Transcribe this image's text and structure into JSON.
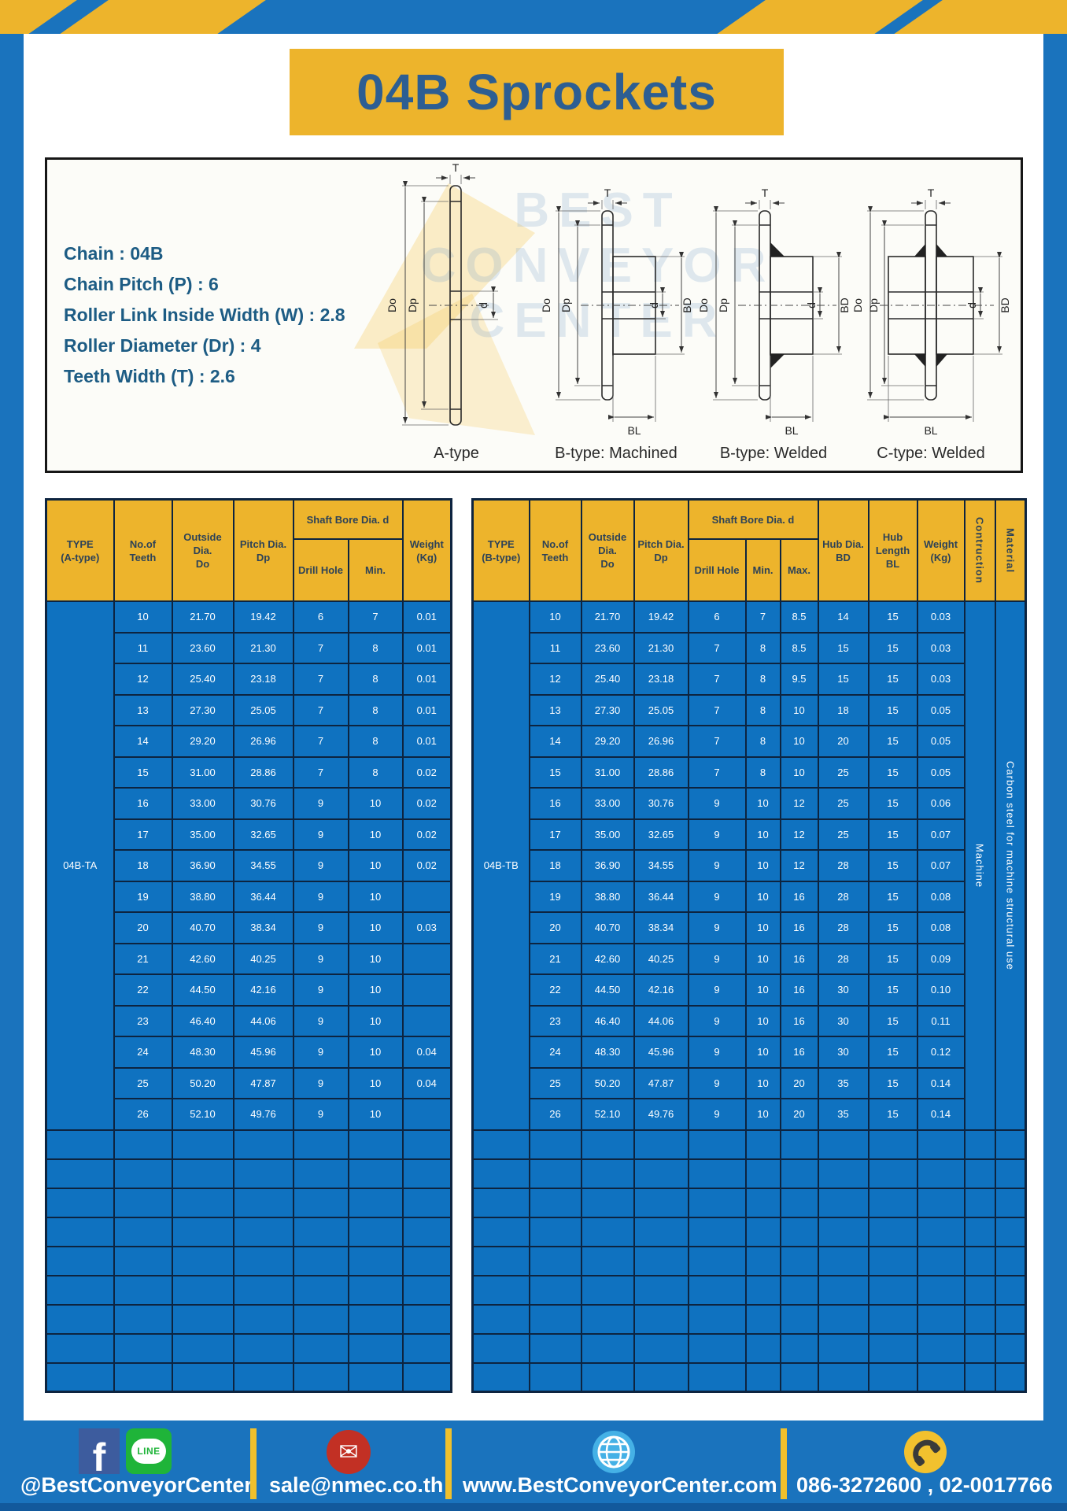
{
  "page": {
    "title": "04B Sprockets",
    "specs": [
      "Chain : 04B",
      "Chain Pitch (P) : 6",
      "Roller Link Inside Width (W) : 2.8",
      "Roller Diameter (Dr) : 4",
      "Teeth Width (T) : 2.6"
    ]
  },
  "watermark": {
    "line1": "BEST",
    "line2": "CONVEYOR",
    "line3": "CENTER"
  },
  "diagram": {
    "captions": [
      "A-type",
      "B-type: Machined",
      "B-type: Welded",
      "C-type: Welded"
    ],
    "dims": {
      "t": "T",
      "do": "Do",
      "dp": "Dp",
      "d": "d",
      "bd": "BD",
      "bl": "BL"
    }
  },
  "left_table": {
    "headers": {
      "type": "TYPE\n(A-type)",
      "teeth": "No.of\nTeeth",
      "outside": "Outside\nDia.\nDo",
      "pitch": "Pitch Dia.\nDp",
      "shaft_bore": "Shaft Bore Dia. d",
      "drill": "Drill Hole",
      "min": "Min.",
      "weight": "Weight\n(Kg)"
    },
    "type_value": "04B-TA",
    "rows": [
      [
        "10",
        "21.70",
        "19.42",
        "6",
        "7",
        "0.01"
      ],
      [
        "11",
        "23.60",
        "21.30",
        "7",
        "8",
        "0.01"
      ],
      [
        "12",
        "25.40",
        "23.18",
        "7",
        "8",
        "0.01"
      ],
      [
        "13",
        "27.30",
        "25.05",
        "7",
        "8",
        "0.01"
      ],
      [
        "14",
        "29.20",
        "26.96",
        "7",
        "8",
        "0.01"
      ],
      [
        "15",
        "31.00",
        "28.86",
        "7",
        "8",
        "0.02"
      ],
      [
        "16",
        "33.00",
        "30.76",
        "9",
        "10",
        "0.02"
      ],
      [
        "17",
        "35.00",
        "32.65",
        "9",
        "10",
        "0.02"
      ],
      [
        "18",
        "36.90",
        "34.55",
        "9",
        "10",
        "0.02"
      ],
      [
        "19",
        "38.80",
        "36.44",
        "9",
        "10",
        ""
      ],
      [
        "20",
        "40.70",
        "38.34",
        "9",
        "10",
        "0.03"
      ],
      [
        "21",
        "42.60",
        "40.25",
        "9",
        "10",
        ""
      ],
      [
        "22",
        "44.50",
        "42.16",
        "9",
        "10",
        ""
      ],
      [
        "23",
        "46.40",
        "44.06",
        "9",
        "10",
        ""
      ],
      [
        "24",
        "48.30",
        "45.96",
        "9",
        "10",
        "0.04"
      ],
      [
        "25",
        "50.20",
        "47.87",
        "9",
        "10",
        "0.04"
      ],
      [
        "26",
        "52.10",
        "49.76",
        "9",
        "10",
        ""
      ]
    ],
    "empty_rows": 9
  },
  "right_table": {
    "headers": {
      "type": "TYPE\n(B-type)",
      "teeth": "No.of\nTeeth",
      "outside": "Outside\nDia.\nDo",
      "pitch": "Pitch Dia.\nDp",
      "shaft_bore": "Shaft Bore Dia. d",
      "drill": "Drill Hole",
      "min": "Min.",
      "max": "Max.",
      "hub_dia": "Hub Dia.\nBD",
      "hub_len": "Hub\nLength\nBL",
      "weight": "Weight\n(Kg)",
      "construction": "Contruction",
      "material": "Material"
    },
    "type_value": "04B-TB",
    "construction_value": "Machine",
    "material_value": "Carbon steel for machine structural use",
    "rows": [
      [
        "10",
        "21.70",
        "19.42",
        "6",
        "7",
        "8.5",
        "14",
        "15",
        "0.03"
      ],
      [
        "11",
        "23.60",
        "21.30",
        "7",
        "8",
        "8.5",
        "15",
        "15",
        "0.03"
      ],
      [
        "12",
        "25.40",
        "23.18",
        "7",
        "8",
        "9.5",
        "15",
        "15",
        "0.03"
      ],
      [
        "13",
        "27.30",
        "25.05",
        "7",
        "8",
        "10",
        "18",
        "15",
        "0.05"
      ],
      [
        "14",
        "29.20",
        "26.96",
        "7",
        "8",
        "10",
        "20",
        "15",
        "0.05"
      ],
      [
        "15",
        "31.00",
        "28.86",
        "7",
        "8",
        "10",
        "25",
        "15",
        "0.05"
      ],
      [
        "16",
        "33.00",
        "30.76",
        "9",
        "10",
        "12",
        "25",
        "15",
        "0.06"
      ],
      [
        "17",
        "35.00",
        "32.65",
        "9",
        "10",
        "12",
        "25",
        "15",
        "0.07"
      ],
      [
        "18",
        "36.90",
        "34.55",
        "9",
        "10",
        "12",
        "28",
        "15",
        "0.07"
      ],
      [
        "19",
        "38.80",
        "36.44",
        "9",
        "10",
        "16",
        "28",
        "15",
        "0.08"
      ],
      [
        "20",
        "40.70",
        "38.34",
        "9",
        "10",
        "16",
        "28",
        "15",
        "0.08"
      ],
      [
        "21",
        "42.60",
        "40.25",
        "9",
        "10",
        "16",
        "28",
        "15",
        "0.09"
      ],
      [
        "22",
        "44.50",
        "42.16",
        "9",
        "10",
        "16",
        "30",
        "15",
        "0.10"
      ],
      [
        "23",
        "46.40",
        "44.06",
        "9",
        "10",
        "16",
        "30",
        "15",
        "0.11"
      ],
      [
        "24",
        "48.30",
        "45.96",
        "9",
        "10",
        "16",
        "30",
        "15",
        "0.12"
      ],
      [
        "25",
        "50.20",
        "47.87",
        "9",
        "10",
        "20",
        "35",
        "15",
        "0.14"
      ],
      [
        "26",
        "52.10",
        "49.76",
        "9",
        "10",
        "20",
        "35",
        "15",
        "0.14"
      ]
    ],
    "empty_rows": 9
  },
  "footer": {
    "icons": {
      "facebook": "f",
      "line": "LINE",
      "mail": "✉"
    },
    "social": "@BestConveyorCenter",
    "email": "sale@nmec.co.th",
    "website": "www.BestConveyorCenter.com",
    "phone": "086-3272600 , 02-0017766"
  },
  "colors": {
    "accent_yellow": "#edb42c",
    "frame_blue": "#1a73bd",
    "table_blue": "#0f72c0",
    "table_border": "#0d2440",
    "title_text": "#2d5e92",
    "spec_text": "#1d5c84"
  }
}
